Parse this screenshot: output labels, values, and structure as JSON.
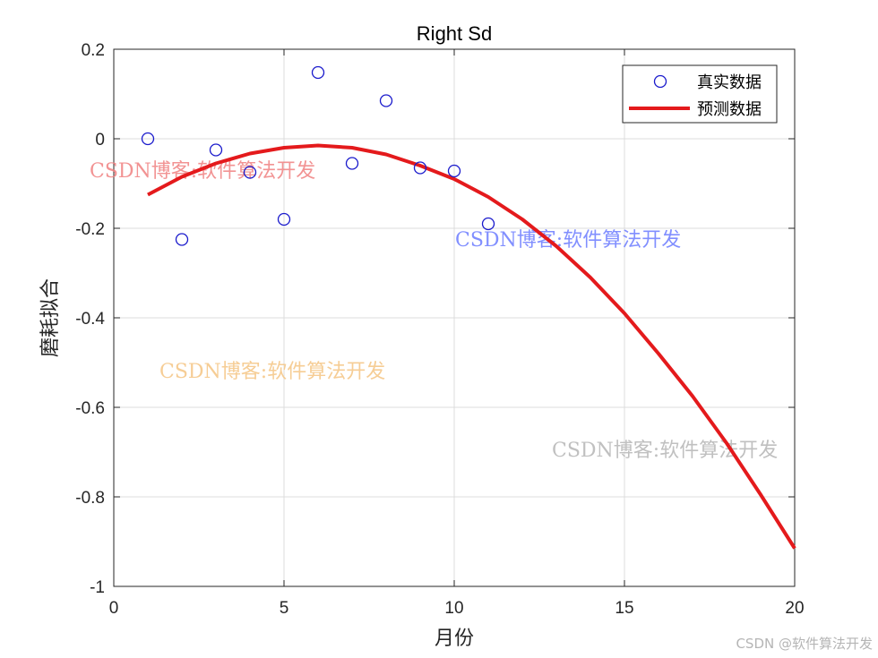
{
  "chart_data": {
    "type": "scatter+line",
    "title": "Right Sd",
    "xlabel": "月份",
    "ylabel": "磨耗拟合",
    "xlim": [
      0,
      20
    ],
    "ylim": [
      -1,
      0.2
    ],
    "xticks": [
      "0",
      "5",
      "10",
      "15",
      "20"
    ],
    "yticks": [
      "0.2",
      "0",
      "-0.2",
      "-0.4",
      "-0.6",
      "-0.8",
      "-1"
    ],
    "xtick_values": [
      0,
      5,
      10,
      15,
      20
    ],
    "ytick_values": [
      0.2,
      0,
      -0.2,
      -0.4,
      -0.6,
      -0.8,
      -1
    ],
    "grid": true,
    "legend_position": "top-right",
    "series": [
      {
        "name": "真实数据",
        "kind": "markers",
        "marker": "circle",
        "color": "#0000ff",
        "x": [
          1,
          2,
          3,
          4,
          5,
          6,
          7,
          8,
          9,
          10,
          11
        ],
        "y": [
          0.0,
          -0.225,
          -0.025,
          -0.075,
          -0.18,
          0.148,
          -0.055,
          0.085,
          -0.065,
          -0.072,
          -0.19
        ]
      },
      {
        "name": "预测数据",
        "kind": "line",
        "color": "#e41a1c",
        "x": [
          1,
          2,
          3,
          4,
          5,
          6,
          7,
          8,
          9,
          10,
          11,
          12,
          13,
          14,
          15,
          16,
          17,
          18,
          19,
          20
        ],
        "y": [
          -0.125,
          -0.085,
          -0.055,
          -0.033,
          -0.02,
          -0.015,
          -0.02,
          -0.035,
          -0.06,
          -0.09,
          -0.13,
          -0.18,
          -0.24,
          -0.31,
          -0.39,
          -0.48,
          -0.575,
          -0.68,
          -0.795,
          -0.915
        ]
      }
    ]
  },
  "watermarks": [
    {
      "text": "CSDN博客:软件算法开发",
      "color": "#f08080"
    },
    {
      "text": "CSDN博客:软件算法开发",
      "color": "#6b7bff"
    },
    {
      "text": "CSDN博客:软件算法开发",
      "color": "#f5c88a"
    },
    {
      "text": "CSDN博客:软件算法开发",
      "color": "#bdbdbd"
    }
  ],
  "footer": "CSDN @软件算法开发"
}
